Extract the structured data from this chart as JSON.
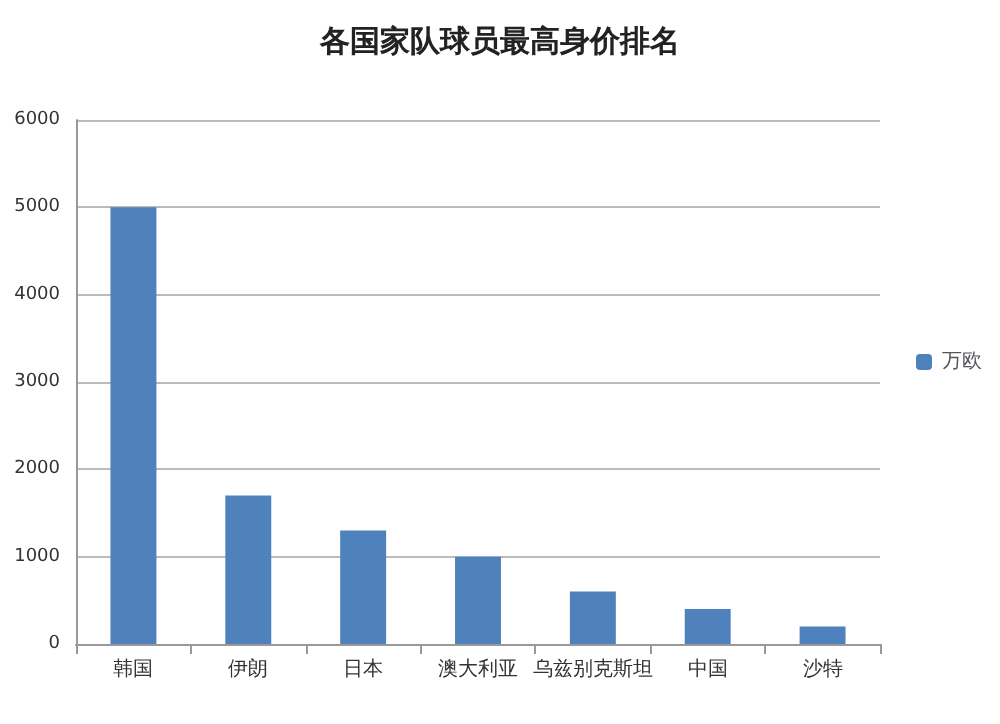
{
  "chart_data": {
    "type": "bar",
    "title": "各国家队球员最高身价排名",
    "categories": [
      "韩国",
      "伊朗",
      "日本",
      "澳大利亚",
      "乌兹别克斯坦",
      "中国",
      "沙特"
    ],
    "series": [
      {
        "name": "万欧",
        "color": "#4f81bd",
        "values": [
          5000,
          1700,
          1300,
          1000,
          600,
          400,
          200
        ]
      }
    ],
    "ylim": [
      0,
      6000
    ],
    "yticks": [
      0,
      1000,
      2000,
      3000,
      4000,
      5000,
      6000
    ],
    "grid": "y",
    "legend": "right"
  }
}
